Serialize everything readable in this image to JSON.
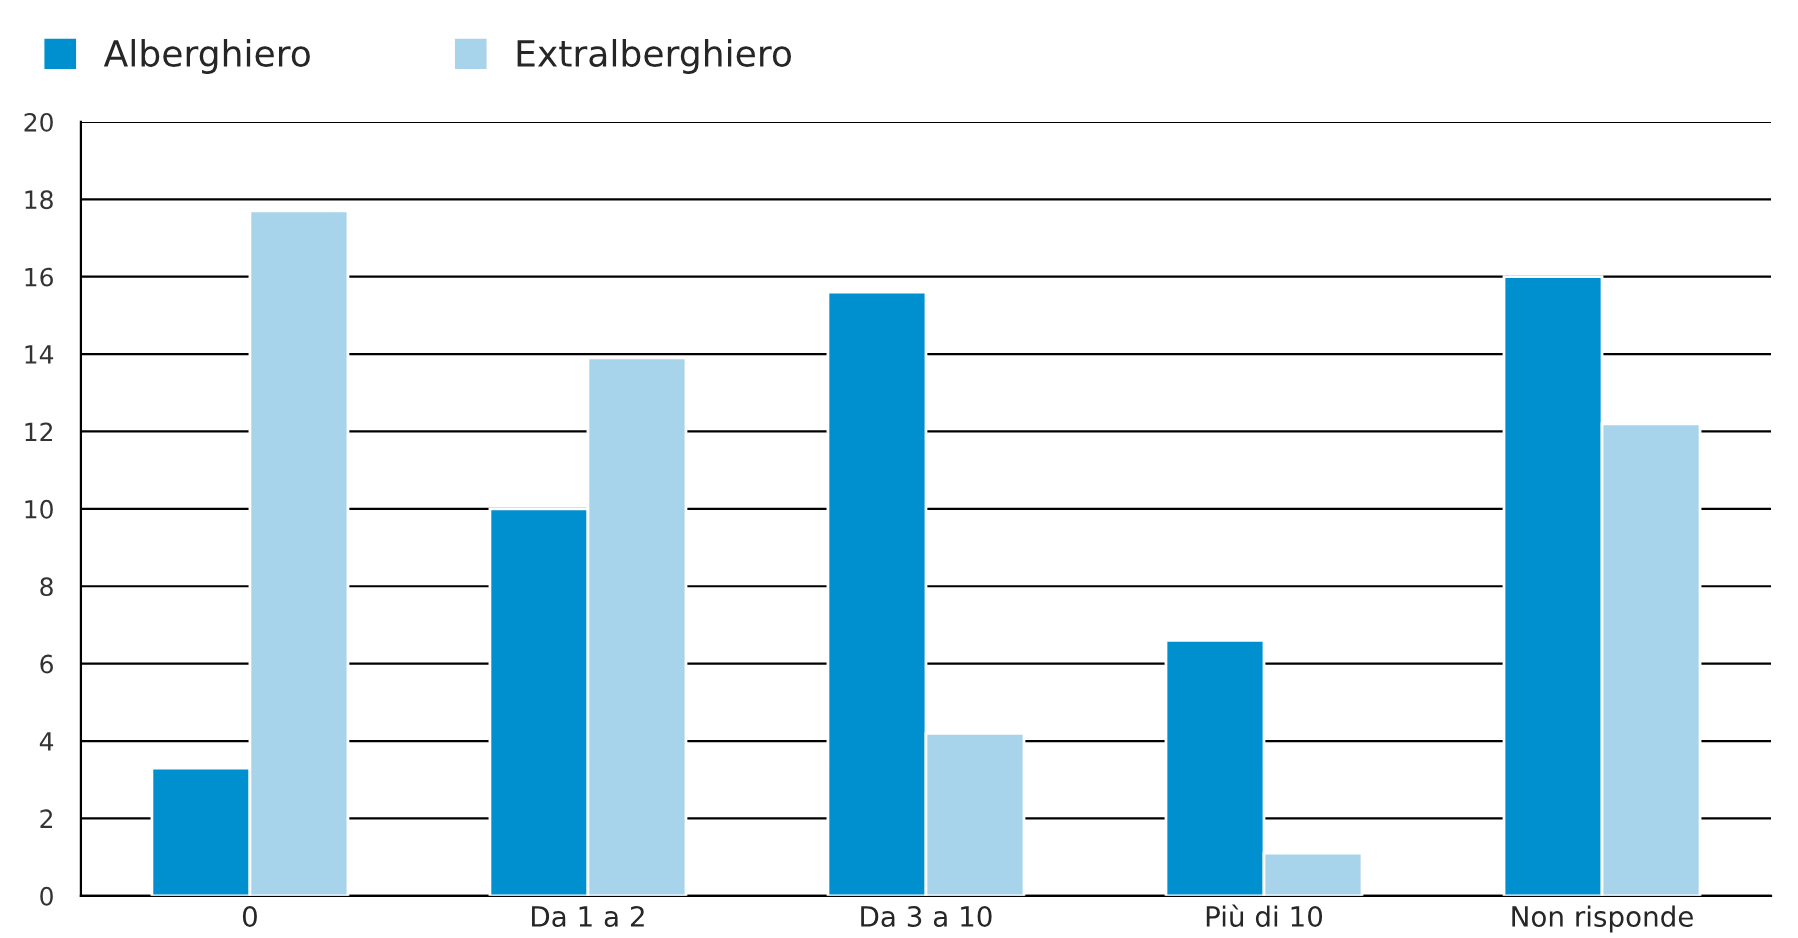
{
  "chart_data": {
    "type": "bar",
    "categories": [
      "0",
      "Da 1 a 2",
      "Da 3 a 10",
      "Più di 10",
      "Non risponde"
    ],
    "series": [
      {
        "name": "Alberghiero",
        "color": "#008fcf",
        "values": [
          3.3,
          10.0,
          15.6,
          6.6,
          16.0
        ]
      },
      {
        "name": "Extralberghiero",
        "color": "#a7d3eb",
        "values": [
          17.7,
          13.9,
          4.2,
          1.1,
          12.2
        ]
      }
    ],
    "ylim": [
      0,
      20
    ],
    "yticks": [
      0,
      2,
      4,
      6,
      8,
      10,
      12,
      14,
      16,
      18,
      20
    ],
    "grid": "y",
    "legend": "top left"
  }
}
